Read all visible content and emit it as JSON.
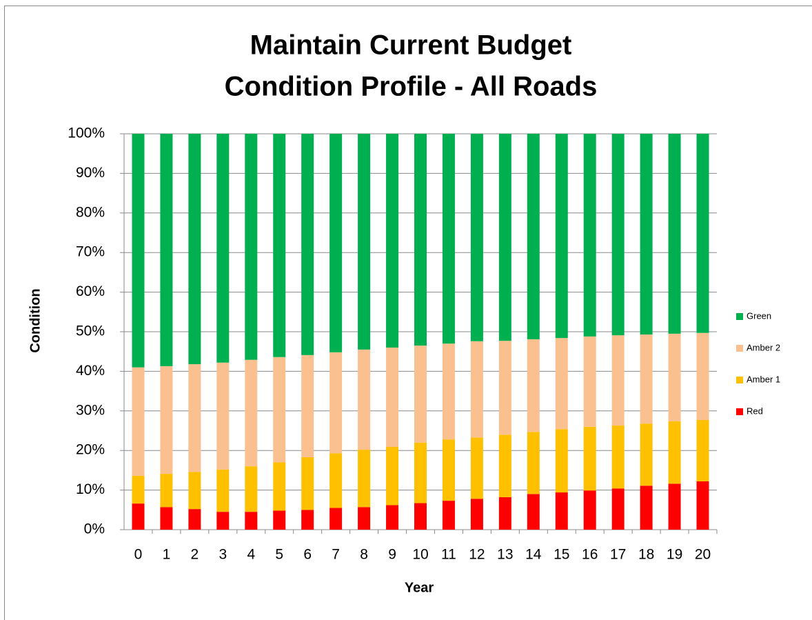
{
  "chart_data": {
    "type": "stacked_bar",
    "title": "Maintain Current Budget",
    "subtitle": "Condition Profile - All Roads",
    "x_label": "Year",
    "y_label": "Condition",
    "categories": [
      "0",
      "1",
      "2",
      "3",
      "4",
      "5",
      "6",
      "7",
      "8",
      "9",
      "10",
      "11",
      "12",
      "13",
      "14",
      "15",
      "16",
      "17",
      "18",
      "19",
      "20"
    ],
    "series": [
      {
        "name": "Red",
        "color": "#ff0000",
        "values": [
          6.6,
          5.7,
          5.2,
          4.5,
          4.5,
          4.8,
          5,
          5.5,
          5.7,
          6.2,
          6.7,
          7.3,
          7.8,
          8.2,
          9,
          9.4,
          9.9,
          10.4,
          11.1,
          11.6,
          12.2
        ]
      },
      {
        "name": "Amber 1",
        "color": "#ffc000",
        "values": [
          7.0,
          8.4,
          9.4,
          10.7,
          11.5,
          12.2,
          13.3,
          13.8,
          14.5,
          14.7,
          15.3,
          15.5,
          15.5,
          15.8,
          15.7,
          16.0,
          16.1,
          15.9,
          15.7,
          15.8,
          15.5
        ]
      },
      {
        "name": "Amber 2",
        "color": "#fac090",
        "values": [
          27.4,
          27.2,
          27.2,
          27.0,
          26.9,
          26.6,
          25.8,
          25.5,
          25.3,
          25.1,
          24.5,
          24.2,
          24.3,
          23.7,
          23.4,
          23.0,
          22.8,
          22.8,
          22.5,
          22.1,
          22.0
        ]
      },
      {
        "name": "Green",
        "color": "#00b050",
        "values": [
          59,
          58.7,
          58.2,
          57.8,
          57.1,
          56.4,
          55.9,
          55.2,
          54.5,
          54,
          53.5,
          53,
          52.4,
          52.3,
          51.9,
          51.6,
          51.2,
          50.9,
          50.7,
          50.5,
          50.3
        ]
      }
    ],
    "ylim": [
      0,
      100
    ],
    "yticks": [
      {
        "value": 0,
        "label": "0%"
      },
      {
        "value": 10,
        "label": "10%"
      },
      {
        "value": 20,
        "label": "20%"
      },
      {
        "value": 30,
        "label": "30%"
      },
      {
        "value": 40,
        "label": "40%"
      },
      {
        "value": 50,
        "label": "50%"
      },
      {
        "value": 60,
        "label": "60%"
      },
      {
        "value": 70,
        "label": "70%"
      },
      {
        "value": 80,
        "label": "80%"
      },
      {
        "value": 90,
        "label": "90%"
      },
      {
        "value": 100,
        "label": "100%"
      }
    ],
    "grid": true,
    "legend": "right"
  }
}
